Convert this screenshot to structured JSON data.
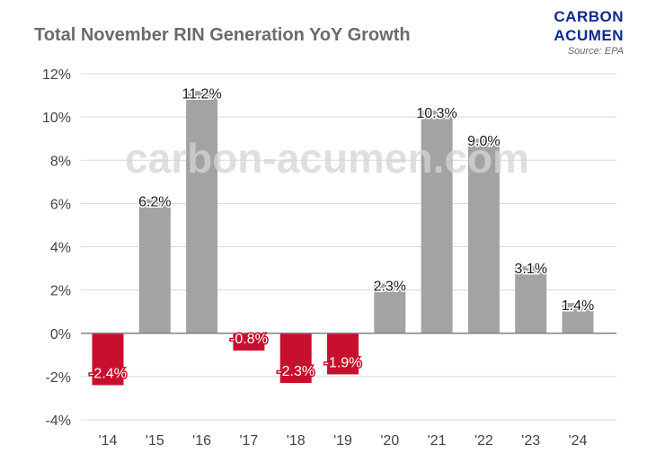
{
  "brand": {
    "line1": "CARBON",
    "line2": "ACUMEN",
    "source": "Source: EPA"
  },
  "watermark": "carbon-acumen.com",
  "colors": {
    "positive": "#a3a3a3",
    "negative": "#c8102e",
    "brand": "#0d2a8c",
    "title": "#6b6b6b",
    "grid": "#d9d9d9",
    "zero_line": "#808080",
    "watermark": "#d4d4d4"
  },
  "chart_data": {
    "type": "bar",
    "title": "Total November RIN Generation YoY Growth",
    "xlabel": "",
    "ylabel": "",
    "categories": [
      "'14",
      "'15",
      "'16",
      "'17",
      "'18",
      "'19",
      "'20",
      "'21",
      "'22",
      "'23",
      "'24"
    ],
    "values": [
      -2.4,
      6.2,
      11.2,
      -0.8,
      -2.3,
      -1.9,
      2.3,
      10.3,
      9.0,
      3.1,
      1.4
    ],
    "value_labels": [
      "-2.4%",
      "6.2%",
      "11.2%",
      "-0.8%",
      "-2.3%",
      "-1.9%",
      "2.3%",
      "10.3%",
      "9.0%",
      "3.1%",
      "1.4%"
    ],
    "ylim": [
      -4,
      12
    ],
    "yticks": [
      12,
      10,
      8,
      6,
      4,
      2,
      0,
      -2,
      -4
    ],
    "ytick_labels": [
      "12%",
      "10%",
      "8%",
      "6%",
      "4%",
      "2%",
      "0%",
      "-2%",
      "-4%"
    ],
    "grid": true,
    "legend": "none"
  }
}
